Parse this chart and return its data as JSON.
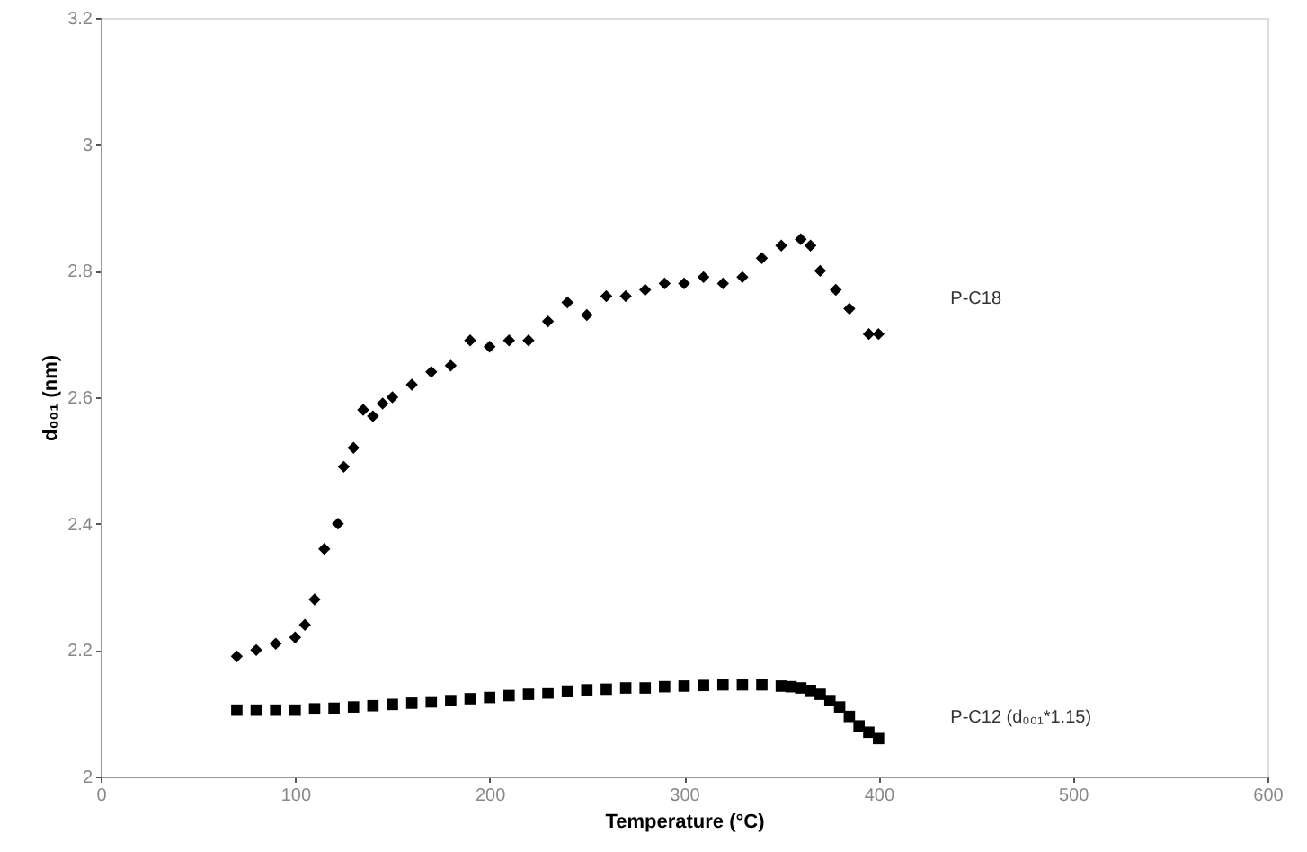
{
  "chart_data": {
    "type": "scatter",
    "xlabel": "Temperature (°C)",
    "ylabel": "d₀₀₁ (nm)",
    "xlim": [
      0,
      600
    ],
    "xticks": [
      0,
      100,
      200,
      300,
      400,
      500,
      600
    ],
    "ylim": [
      2,
      3.2
    ],
    "yticks": [
      2,
      2.2,
      2.4,
      2.6,
      2.8,
      3,
      3.2
    ],
    "grid": false,
    "series": [
      {
        "name": "P-C18",
        "color": "#000000",
        "marker": "diamond",
        "x": [
          70,
          80,
          90,
          100,
          105,
          110,
          115,
          122,
          125,
          130,
          135,
          140,
          145,
          150,
          160,
          170,
          180,
          190,
          200,
          210,
          220,
          230,
          240,
          250,
          260,
          270,
          280,
          290,
          300,
          310,
          320,
          330,
          340,
          350,
          360,
          365,
          370,
          378,
          385,
          395,
          400
        ],
        "values": [
          2.19,
          2.2,
          2.21,
          2.22,
          2.24,
          2.28,
          2.36,
          2.4,
          2.49,
          2.52,
          2.58,
          2.57,
          2.59,
          2.6,
          2.62,
          2.64,
          2.65,
          2.69,
          2.68,
          2.69,
          2.69,
          2.72,
          2.75,
          2.73,
          2.76,
          2.76,
          2.77,
          2.78,
          2.78,
          2.79,
          2.78,
          2.79,
          2.82,
          2.84,
          2.85,
          2.84,
          2.8,
          2.77,
          2.74,
          2.7,
          2.7
        ]
      },
      {
        "name": "P-C12 (d₀₀₁*1.15)",
        "color": "#000000",
        "marker": "square",
        "x": [
          70,
          80,
          90,
          100,
          110,
          120,
          130,
          140,
          150,
          160,
          170,
          180,
          190,
          200,
          210,
          220,
          230,
          240,
          250,
          260,
          270,
          280,
          290,
          300,
          310,
          320,
          330,
          340,
          350,
          355,
          360,
          365,
          370,
          375,
          380,
          385,
          390,
          395,
          400
        ],
        "values": [
          2.105,
          2.105,
          2.105,
          2.105,
          2.107,
          2.108,
          2.11,
          2.112,
          2.114,
          2.116,
          2.118,
          2.12,
          2.123,
          2.125,
          2.128,
          2.13,
          2.132,
          2.135,
          2.137,
          2.138,
          2.14,
          2.14,
          2.142,
          2.143,
          2.144,
          2.145,
          2.145,
          2.145,
          2.143,
          2.142,
          2.14,
          2.136,
          2.13,
          2.12,
          2.11,
          2.095,
          2.08,
          2.07,
          2.06
        ]
      }
    ]
  }
}
